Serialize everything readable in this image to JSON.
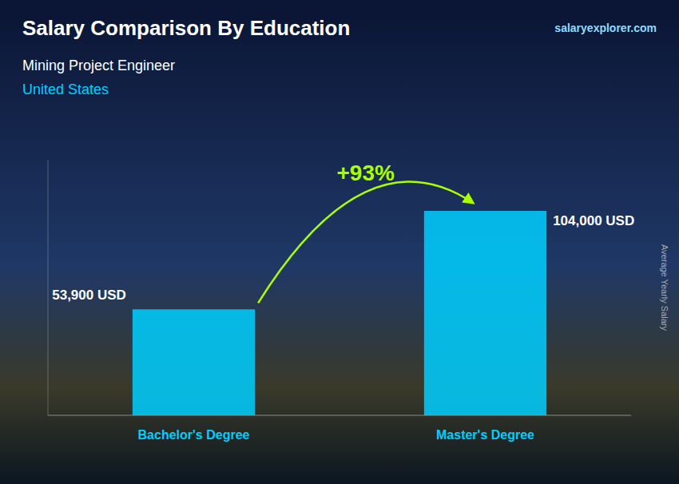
{
  "chart_data": {
    "type": "bar",
    "title": "Salary Comparison By Education",
    "subtitle": "Mining Project Engineer",
    "annotations": [
      "United States",
      "salaryexplorer.com",
      "+93%"
    ],
    "ylabel": "Average Yearly Salary",
    "categories": [
      "Bachelor's Degree",
      "Master's Degree"
    ],
    "values": [
      53900,
      104000
    ],
    "value_labels": [
      "53,900 USD",
      "104,000 USD"
    ],
    "color": "#00CFFF",
    "ylim": [
      0,
      130000
    ],
    "grid": false,
    "tick_labels": "x",
    "data_labels": true
  }
}
